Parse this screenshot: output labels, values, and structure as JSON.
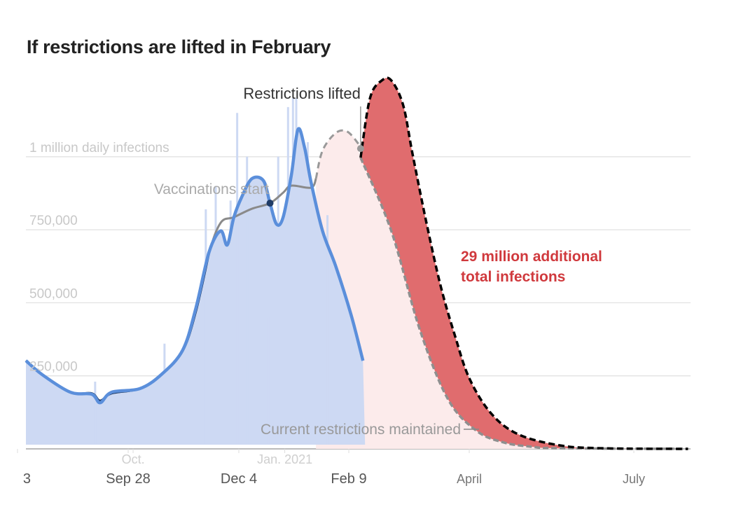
{
  "chart_data": {
    "type": "line",
    "title": "If restrictions are lifted in February",
    "xlabel": "",
    "ylabel": "",
    "ylim": [
      0,
      1300000
    ],
    "grid": true,
    "y_ticks": [
      {
        "value": 250000,
        "label": "250,000"
      },
      {
        "value": 500000,
        "label": "500,000"
      },
      {
        "value": 750000,
        "label": "750,000"
      },
      {
        "value": 1000000,
        "label": "1 million daily infections"
      }
    ],
    "x_ticks": [
      {
        "date": "2020-07-23",
        "label": "3",
        "style": "main"
      },
      {
        "date": "2020-09-28",
        "label": "Sep 28",
        "style": "main"
      },
      {
        "date": "2020-10-01",
        "label": "Oct.",
        "style": "faint"
      },
      {
        "date": "2020-12-04",
        "label": "Dec 4",
        "style": "main"
      },
      {
        "date": "2021-01-01",
        "label": "Jan. 2021",
        "style": "faint"
      },
      {
        "date": "2021-02-09",
        "label": "Feb 9",
        "style": "main"
      },
      {
        "date": "2021-04-01",
        "label": "April",
        "style": "projection"
      },
      {
        "date": "2021-07-01",
        "label": "July",
        "style": "projection"
      }
    ],
    "annotations": {
      "restrictions_lifted": {
        "label": "Restrictions lifted",
        "date": "2021-02-14",
        "value": 1028000
      },
      "vaccinations_start": {
        "label": "Vaccinations start",
        "date": "2020-12-23",
        "value": 841000
      },
      "current_restrictions": {
        "label": "Current restrictions maintained"
      },
      "additional_infections": {
        "line1": "29 million additional",
        "line2": "total infections"
      }
    },
    "colors": {
      "observed_bars": "#cdd9f3",
      "observed_avg": "#5b8fdb",
      "model_early": "#1f3b66",
      "model": "#8a8a8a",
      "projection_shade": "#fcebeb",
      "additional": "#e06c6e",
      "lifted_line": "#000000",
      "annotation_red": "#d0393d"
    },
    "series": [
      {
        "key": "observed_avg",
        "points": [
          [
            "2020-07-28",
            302000
          ],
          [
            "2020-08-07",
            254000
          ],
          [
            "2020-08-24",
            194000
          ],
          [
            "2020-09-06",
            187000
          ],
          [
            "2020-09-11",
            158000
          ],
          [
            "2020-09-18",
            194000
          ],
          [
            "2020-10-05",
            206000
          ],
          [
            "2020-10-18",
            254000
          ],
          [
            "2020-10-31",
            338000
          ],
          [
            "2020-11-08",
            482000
          ],
          [
            "2020-11-16",
            674000
          ],
          [
            "2020-11-23",
            746000
          ],
          [
            "2020-11-27",
            698000
          ],
          [
            "2020-12-01",
            793000
          ],
          [
            "2020-12-06",
            865000
          ],
          [
            "2020-12-12",
            925000
          ],
          [
            "2020-12-19",
            918000
          ],
          [
            "2020-12-23",
            841000
          ],
          [
            "2020-12-27",
            769000
          ],
          [
            "2020-12-31",
            793000
          ],
          [
            "2021-01-05",
            937000
          ],
          [
            "2021-01-09",
            1093000
          ],
          [
            "2021-01-13",
            1033000
          ],
          [
            "2021-01-17",
            913000
          ],
          [
            "2021-01-24",
            746000
          ],
          [
            "2021-02-01",
            626000
          ],
          [
            "2021-02-10",
            458000
          ],
          [
            "2021-02-15",
            302000
          ]
        ]
      },
      {
        "key": "model",
        "points": [
          [
            "2020-07-28",
            302000
          ],
          [
            "2020-08-07",
            254000
          ],
          [
            "2020-08-24",
            194000
          ],
          [
            "2020-09-06",
            190000
          ],
          [
            "2020-09-11",
            165000
          ],
          [
            "2020-09-18",
            190000
          ],
          [
            "2020-10-05",
            206000
          ],
          [
            "2020-10-18",
            254000
          ],
          [
            "2020-10-31",
            335000
          ],
          [
            "2020-11-08",
            470000
          ],
          [
            "2020-11-16",
            670000
          ],
          [
            "2020-11-23",
            774000
          ],
          [
            "2020-12-01",
            793000
          ],
          [
            "2020-12-12",
            822000
          ],
          [
            "2020-12-23",
            841000
          ],
          [
            "2020-12-31",
            877000
          ],
          [
            "2021-01-05",
            901000
          ],
          [
            "2021-01-17",
            894000
          ],
          [
            "2021-01-20",
            925000
          ]
        ]
      },
      {
        "key": "model_projected_prelift",
        "points": [
          [
            "2021-01-20",
            925000
          ],
          [
            "2021-01-24",
            1021000
          ],
          [
            "2021-02-01",
            1081000
          ],
          [
            "2021-02-08",
            1086000
          ],
          [
            "2021-02-13",
            1045000
          ],
          [
            "2021-02-14",
            1028000
          ]
        ]
      },
      {
        "key": "current_restrictions",
        "name": "Current restrictions maintained",
        "points": [
          [
            "2021-02-14",
            997000
          ],
          [
            "2021-02-27",
            746000
          ],
          [
            "2021-03-11",
            410000
          ],
          [
            "2021-03-23",
            170000
          ],
          [
            "2021-04-05",
            62000
          ],
          [
            "2021-04-20",
            22000
          ],
          [
            "2021-05-06",
            7000
          ],
          [
            "2021-05-21",
            2000
          ],
          [
            "2021-07-31",
            0
          ]
        ]
      },
      {
        "key": "restrictions_lifted",
        "points": [
          [
            "2021-02-14",
            997000
          ],
          [
            "2021-02-18",
            1201000
          ],
          [
            "2021-02-23",
            1261000
          ],
          [
            "2021-02-27",
            1261000
          ],
          [
            "2021-03-04",
            1177000
          ],
          [
            "2021-03-08",
            1009000
          ],
          [
            "2021-03-14",
            769000
          ],
          [
            "2021-03-20",
            554000
          ],
          [
            "2021-03-26",
            386000
          ],
          [
            "2021-04-01",
            242000
          ],
          [
            "2021-04-13",
            122000
          ],
          [
            "2021-04-28",
            50000
          ],
          [
            "2021-05-21",
            12000
          ],
          [
            "2021-06-14",
            2000
          ],
          [
            "2021-07-31",
            0
          ]
        ]
      }
    ],
    "daily_spikes": [
      [
        "2020-09-08",
        230000
      ],
      [
        "2020-10-20",
        360000
      ],
      [
        "2020-11-14",
        820000
      ],
      [
        "2020-11-20",
        900000
      ],
      [
        "2020-11-29",
        850000
      ],
      [
        "2020-12-03",
        1150000
      ],
      [
        "2020-12-09",
        1000000
      ],
      [
        "2020-12-14",
        900000
      ],
      [
        "2020-12-22",
        450000
      ],
      [
        "2020-12-28",
        1000000
      ],
      [
        "2021-01-03",
        1170000
      ],
      [
        "2021-01-06",
        1200000
      ],
      [
        "2021-01-08",
        1200000
      ],
      [
        "2021-01-15",
        1050000
      ],
      [
        "2021-01-27",
        800000
      ],
      [
        "2021-02-05",
        500000
      ]
    ]
  }
}
